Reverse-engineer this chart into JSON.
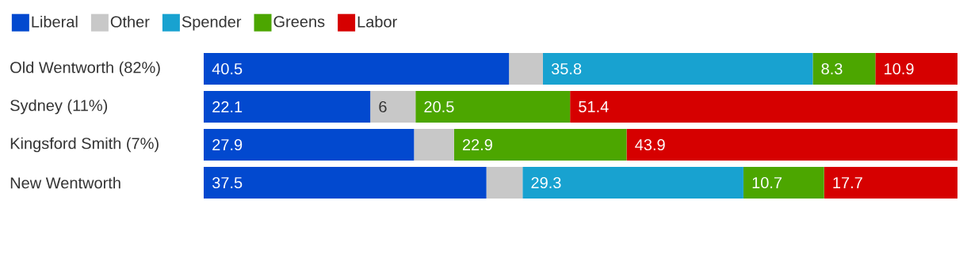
{
  "chart_data": {
    "type": "bar",
    "orientation": "horizontal",
    "stacked": true,
    "legend": "top left",
    "categories": [
      "Old Wentworth (82%)",
      "Sydney (11%)",
      "Kingsford Smith (7%)",
      "New Wentworth"
    ],
    "series": [
      {
        "name": "Liberal",
        "color": "#0249cf",
        "values": [
          40.5,
          22.1,
          27.9,
          37.5
        ],
        "value_labels": [
          "40.5",
          "22.1",
          "27.9",
          "37.5"
        ]
      },
      {
        "name": "Other",
        "color": "#c8c8c8",
        "values": [
          4.5,
          6,
          5.3,
          4.8
        ],
        "value_labels": [
          null,
          "6",
          null,
          null
        ]
      },
      {
        "name": "Spender",
        "color": "#18a2d0",
        "values": [
          35.8,
          0,
          0,
          29.3
        ],
        "value_labels": [
          "35.8",
          null,
          null,
          "29.3"
        ]
      },
      {
        "name": "Greens",
        "color": "#4ca600",
        "values": [
          8.3,
          20.5,
          22.9,
          10.7
        ],
        "value_labels": [
          "8.3",
          "20.5",
          "22.9",
          "10.7"
        ]
      },
      {
        "name": "Labor",
        "color": "#d60000",
        "values": [
          10.9,
          51.4,
          43.9,
          17.7
        ],
        "value_labels": [
          "10.9",
          "51.4",
          "43.9",
          "17.7"
        ]
      }
    ]
  }
}
